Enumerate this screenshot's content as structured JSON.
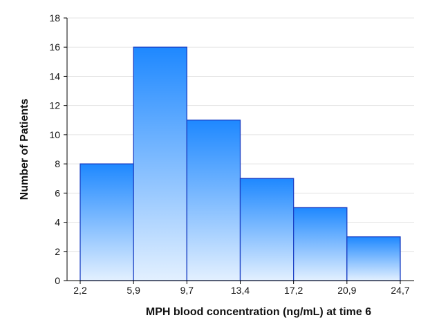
{
  "chart_data": {
    "type": "bar",
    "subtype": "histogram",
    "title": "",
    "xlabel": "MPH blood concentration (ng/mL) at time 6",
    "ylabel": "Number of Patients",
    "bin_edges": [
      "2,2",
      "5,9",
      "9,7",
      "13,4",
      "17,2",
      "20,9",
      "24,7"
    ],
    "values": [
      8,
      16,
      11,
      7,
      5,
      3
    ],
    "ylim": [
      0,
      18
    ],
    "y_ticks": [
      0,
      2,
      4,
      6,
      8,
      10,
      12,
      14,
      16,
      18
    ],
    "grid": "horizontal",
    "bar_fill_top": "#1e88ff",
    "bar_fill_bottom": "#e3f0ff",
    "bar_stroke": "#1a3fc4"
  }
}
